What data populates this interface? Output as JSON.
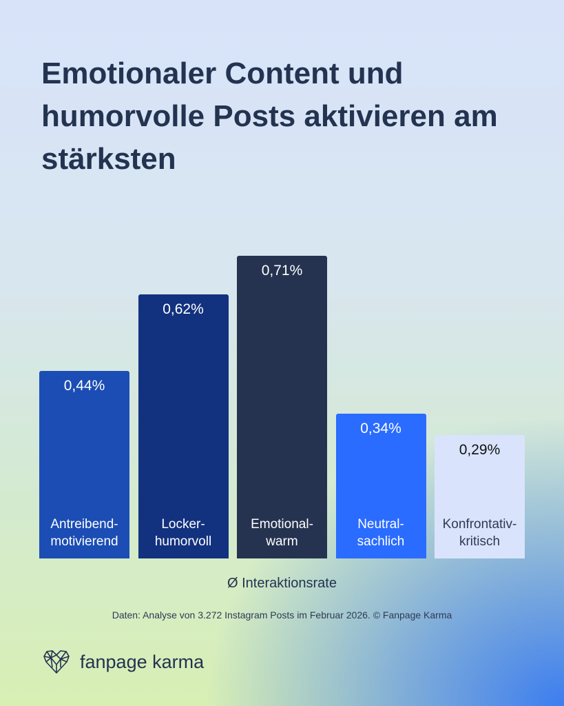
{
  "chart_data": {
    "type": "bar",
    "title": "Emotionaler Content und humorvolle Posts aktivieren am stärksten",
    "xlabel": "Ø Interaktionsrate",
    "ylabel": "",
    "ylim": [
      0,
      0.71
    ],
    "categories": [
      "Antreibend-\nmotivierend",
      "Locker-\nhumorvoll",
      "Emotional-\nwarm",
      "Neutral-\nsachlich",
      "Konfrontativ-\nkritisch"
    ],
    "values": [
      0.44,
      0.62,
      0.71,
      0.34,
      0.29
    ],
    "labels": [
      "0,44%",
      "0,62%",
      "0,71%",
      "0,34%",
      "0,29%"
    ],
    "colors": [
      "#1b4db5",
      "#12327f",
      "#253350",
      "#2a6cff",
      "#d9e4fc"
    ],
    "text_colors": [
      "#ffffff",
      "#ffffff",
      "#ffffff",
      "#ffffff",
      "#111111"
    ],
    "grid": false,
    "legend": "none"
  },
  "source": "Daten: Analyse von 3.272 Instagram Posts im Februar 2026. © Fanpage Karma",
  "logo": {
    "text": "fanpage karma",
    "icon": "heart-network-icon"
  }
}
